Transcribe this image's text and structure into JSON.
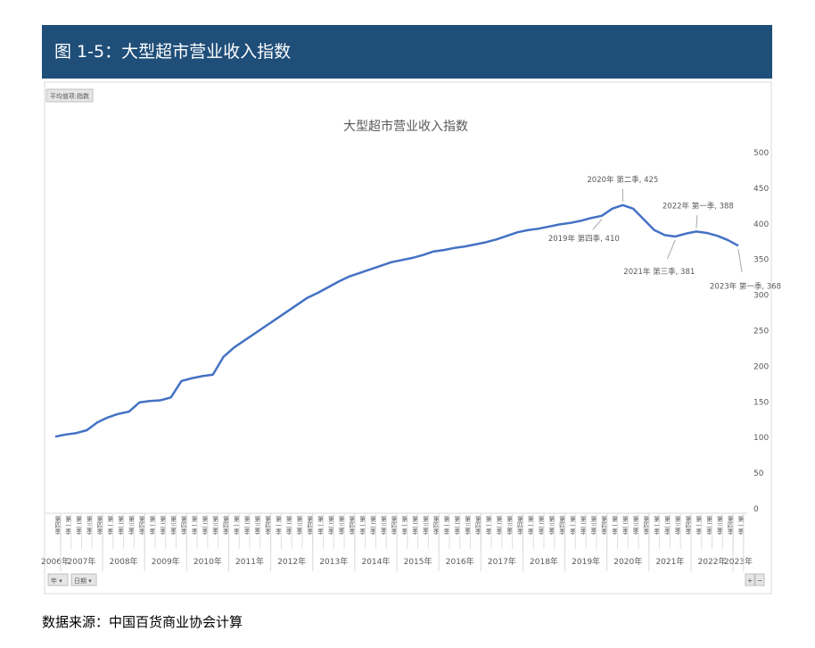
{
  "header": {
    "title": "图 1-5：大型超市营业收入指数"
  },
  "chart_data": {
    "type": "line",
    "title": "大型超市营业收入指数",
    "field_button": "平均值项:指数",
    "filter_buttons": [
      "年 ▾",
      "日期 ▾"
    ],
    "zoom_buttons": [
      "+",
      "−"
    ],
    "years": [
      "2006年",
      "2007年",
      "2007年",
      "2007年",
      "2007年",
      "2008年",
      "2008年",
      "2008年",
      "2008年",
      "2009年",
      "2009年",
      "2009年",
      "2009年",
      "2010年",
      "2010年",
      "2010年",
      "2010年",
      "2011年",
      "2011年",
      "2011年",
      "2011年",
      "2012年",
      "2012年",
      "2012年",
      "2012年",
      "2013年",
      "2013年",
      "2013年",
      "2013年",
      "2014年",
      "2014年",
      "2014年",
      "2014年",
      "2015年",
      "2015年",
      "2015年",
      "2015年",
      "2016年",
      "2016年",
      "2016年",
      "2016年",
      "2017年",
      "2017年",
      "2017年",
      "2017年",
      "2018年",
      "2018年",
      "2018年",
      "2018年",
      "2019年",
      "2019年",
      "2019年",
      "2019年",
      "2020年",
      "2020年",
      "2020年",
      "2020年",
      "2021年",
      "2021年",
      "2021年",
      "2021年",
      "2022年",
      "2022年",
      "2022年",
      "2022年",
      "2023年"
    ],
    "categories": [
      "第四季",
      "第一季",
      "第二季",
      "第三季",
      "第四季",
      "第一季",
      "第二季",
      "第三季",
      "第四季",
      "第一季",
      "第二季",
      "第三季",
      "第四季",
      "第一季",
      "第二季",
      "第三季",
      "第四季",
      "第一季",
      "第二季",
      "第三季",
      "第四季",
      "第一季",
      "第二季",
      "第三季",
      "第四季",
      "第一季",
      "第二季",
      "第三季",
      "第四季",
      "第一季",
      "第二季",
      "第三季",
      "第四季",
      "第一季",
      "第二季",
      "第三季",
      "第四季",
      "第一季",
      "第二季",
      "第三季",
      "第四季",
      "第一季",
      "第二季",
      "第三季",
      "第四季",
      "第一季",
      "第二季",
      "第三季",
      "第四季",
      "第一季",
      "第二季",
      "第三季",
      "第四季",
      "第一季",
      "第二季",
      "第三季",
      "第四季",
      "第一季",
      "第二季",
      "第三季",
      "第四季",
      "第一季",
      "第二季",
      "第三季",
      "第四季",
      "第一季"
    ],
    "values": [
      100,
      103,
      105,
      109,
      120,
      127,
      132,
      135,
      148,
      150,
      151,
      155,
      178,
      182,
      185,
      187,
      212,
      225,
      235,
      245,
      255,
      265,
      275,
      285,
      295,
      302,
      310,
      318,
      325,
      330,
      335,
      340,
      345,
      348,
      351,
      355,
      360,
      362,
      365,
      367,
      370,
      373,
      377,
      382,
      387,
      390,
      392,
      395,
      398,
      400,
      403,
      407,
      410,
      420,
      425,
      420,
      405,
      390,
      383,
      381,
      385,
      388,
      386,
      382,
      376,
      368
    ],
    "value_labels": [
      null,
      null,
      null,
      null,
      null,
      null,
      null,
      null,
      null,
      null,
      null,
      null,
      null,
      null,
      null,
      null,
      null,
      null,
      null,
      null,
      null,
      null,
      null,
      null,
      null,
      null,
      null,
      null,
      null,
      null,
      null,
      null,
      null,
      null,
      null,
      null,
      null,
      null,
      null,
      null,
      null,
      null,
      null,
      null,
      null,
      null,
      null,
      null,
      null,
      null,
      null,
      null,
      "2019年 第四季, 410",
      null,
      "2020年 第二季, 425",
      null,
      null,
      null,
      null,
      "2021年 第三季, 381",
      null,
      "2022年 第一季, 388",
      null,
      null,
      null,
      "2023年 第一季, 368"
    ],
    "color": "#4472c4",
    "ylim": [
      0,
      500
    ],
    "yticks": [
      0,
      50,
      100,
      150,
      200,
      250,
      300,
      350,
      400,
      450,
      500
    ],
    "y_axis_side": "right"
  },
  "footer": {
    "source": "数据来源：中国百货商业协会计算"
  }
}
